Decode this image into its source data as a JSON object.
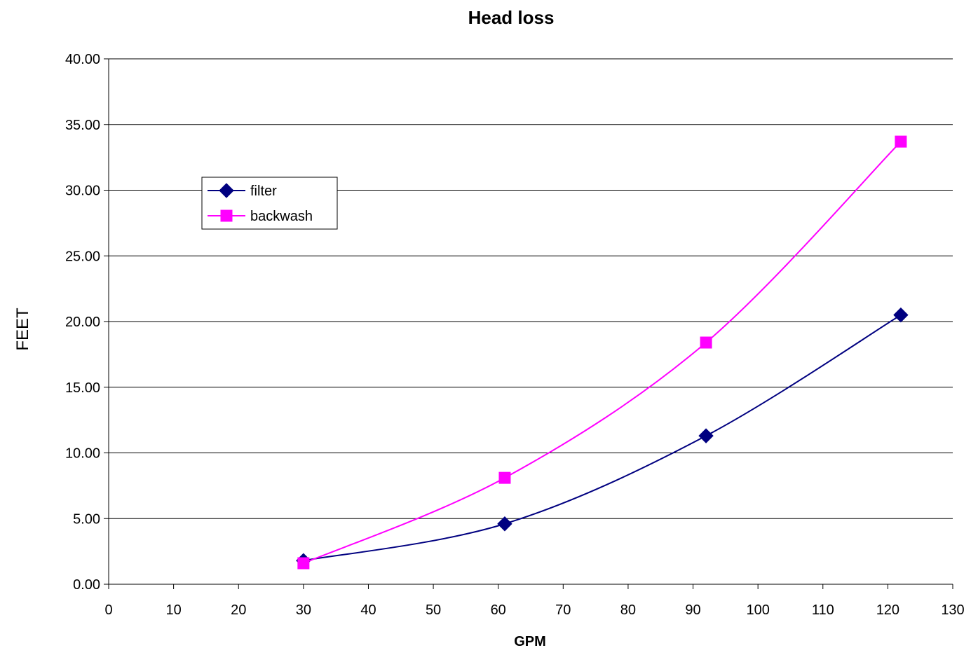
{
  "chart_data": {
    "type": "scatter",
    "title": "Head loss",
    "xlabel": "GPM",
    "ylabel": "FEET",
    "xlim": [
      0,
      130
    ],
    "ylim": [
      0,
      40
    ],
    "x_ticks": [
      "0",
      "10",
      "20",
      "30",
      "40",
      "50",
      "60",
      "70",
      "80",
      "90",
      "100",
      "110",
      "120",
      "130"
    ],
    "y_ticks": [
      "0.00",
      "5.00",
      "10.00",
      "15.00",
      "20.00",
      "25.00",
      "30.00",
      "35.00",
      "40.00"
    ],
    "grid": "horizontal",
    "legend_position": "upper-left",
    "series": [
      {
        "name": "filter",
        "color": "#000080",
        "marker": "diamond",
        "smooth": true,
        "x": [
          30,
          61,
          92,
          122
        ],
        "y": [
          1.8,
          4.6,
          11.3,
          20.5
        ]
      },
      {
        "name": "backwash",
        "color": "#FF00FF",
        "marker": "square",
        "smooth": true,
        "x": [
          30,
          61,
          92,
          122
        ],
        "y": [
          1.6,
          8.1,
          18.4,
          33.7
        ]
      }
    ]
  }
}
